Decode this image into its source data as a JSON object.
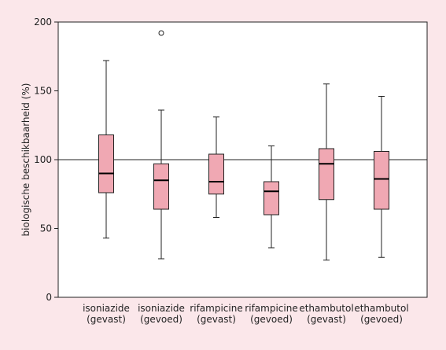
{
  "chart_data": {
    "type": "box",
    "ylabel": "biologische beschikbaarheid (%)",
    "xlabel": "",
    "ylim": [
      0,
      200
    ],
    "yticks": [
      0,
      50,
      100,
      150,
      200
    ],
    "reference_line": 100,
    "grid": false,
    "colors": {
      "box_fill": "#f0a8b3",
      "background": "#fbe7ea",
      "plot_bg": "#ffffff",
      "stroke": "#222222"
    },
    "categories": [
      [
        "isoniazide",
        "(gevast)"
      ],
      [
        "isoniazide",
        "(gevoed)"
      ],
      [
        "rifampicine",
        "(gevast)"
      ],
      [
        "rifampicine",
        "(gevoed)"
      ],
      [
        "ethambutol",
        "(gevast)"
      ],
      [
        "ethambutol",
        "(gevoed)"
      ]
    ],
    "boxes": [
      {
        "min": 43,
        "q1": 76,
        "median": 90,
        "q3": 118,
        "max": 172,
        "outliers": []
      },
      {
        "min": 28,
        "q1": 64,
        "median": 85,
        "q3": 97,
        "max": 136,
        "outliers": [
          192
        ]
      },
      {
        "min": 58,
        "q1": 75,
        "median": 84,
        "q3": 104,
        "max": 131,
        "outliers": []
      },
      {
        "min": 36,
        "q1": 60,
        "median": 77,
        "q3": 84,
        "max": 110,
        "outliers": []
      },
      {
        "min": 27,
        "q1": 71,
        "median": 97,
        "q3": 108,
        "max": 155,
        "outliers": []
      },
      {
        "min": 29,
        "q1": 64,
        "median": 86,
        "q3": 106,
        "max": 146,
        "outliers": []
      }
    ]
  }
}
